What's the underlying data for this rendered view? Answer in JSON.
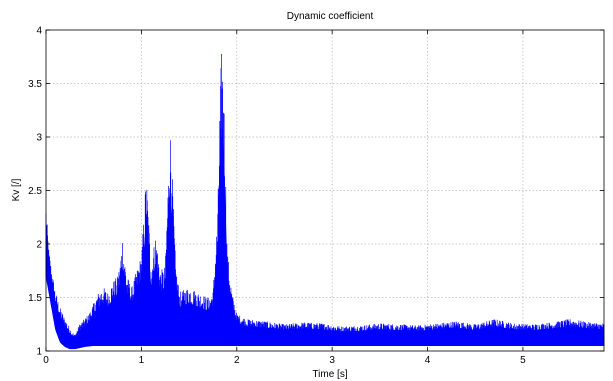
{
  "chart_data": {
    "type": "line",
    "title": "Dynamic coefficient",
    "xlabel": "Time [s]",
    "ylabel": "Kv [/]",
    "xlim": [
      0,
      5.85
    ],
    "ylim": [
      1,
      4
    ],
    "xticks": [
      0,
      1,
      2,
      3,
      4,
      5
    ],
    "yticks": [
      1,
      1.5,
      2,
      2.5,
      3,
      3.5,
      4
    ],
    "grid": true,
    "series": [
      {
        "color": "#0000ff",
        "envelope_upper": {
          "x": [
            0,
            0.03,
            0.06,
            0.1,
            0.15,
            0.2,
            0.25,
            0.3,
            0.35,
            0.4,
            0.45,
            0.5,
            0.55,
            0.6,
            0.65,
            0.7,
            0.75,
            0.78,
            0.8,
            0.82,
            0.85,
            0.9,
            0.95,
            1.0,
            1.03,
            1.05,
            1.08,
            1.1,
            1.15,
            1.2,
            1.25,
            1.28,
            1.3,
            1.33,
            1.36,
            1.4,
            1.5,
            1.6,
            1.7,
            1.75,
            1.8,
            1.82,
            1.84,
            1.86,
            1.88,
            1.9,
            1.95,
            2.0,
            2.1,
            2.3,
            2.5,
            2.7,
            2.9,
            3.1,
            3.3,
            3.5,
            3.7,
            3.9,
            4.1,
            4.3,
            4.5,
            4.7,
            4.9,
            5.1,
            5.3,
            5.5,
            5.7,
            5.85
          ],
          "y": [
            2.35,
            1.95,
            1.75,
            1.55,
            1.4,
            1.3,
            1.22,
            1.15,
            1.25,
            1.3,
            1.35,
            1.45,
            1.55,
            1.6,
            1.55,
            1.65,
            1.7,
            1.85,
            2.1,
            1.9,
            1.7,
            1.6,
            1.75,
            1.9,
            2.3,
            2.68,
            2.2,
            1.8,
            2.1,
            1.75,
            1.8,
            2.6,
            3.13,
            2.5,
            1.8,
            1.55,
            1.6,
            1.55,
            1.5,
            1.55,
            2.3,
            3.2,
            3.85,
            3.65,
            2.8,
            1.95,
            1.55,
            1.35,
            1.3,
            1.28,
            1.25,
            1.27,
            1.26,
            1.23,
            1.24,
            1.26,
            1.25,
            1.24,
            1.26,
            1.28,
            1.25,
            1.3,
            1.26,
            1.25,
            1.27,
            1.3,
            1.27,
            1.26
          ]
        },
        "envelope_lower": {
          "x": [
            0,
            0.05,
            0.1,
            0.15,
            0.2,
            0.25,
            0.3,
            0.35,
            0.4,
            0.5,
            0.6,
            0.8,
            1.0,
            1.2,
            1.5,
            1.8,
            2.0,
            3.0,
            4.0,
            5.0,
            5.85
          ],
          "y": [
            1.7,
            1.45,
            1.2,
            1.08,
            1.04,
            1.02,
            1.02,
            1.03,
            1.04,
            1.05,
            1.05,
            1.05,
            1.05,
            1.05,
            1.05,
            1.05,
            1.05,
            1.05,
            1.05,
            1.05,
            1.05
          ]
        }
      }
    ]
  }
}
